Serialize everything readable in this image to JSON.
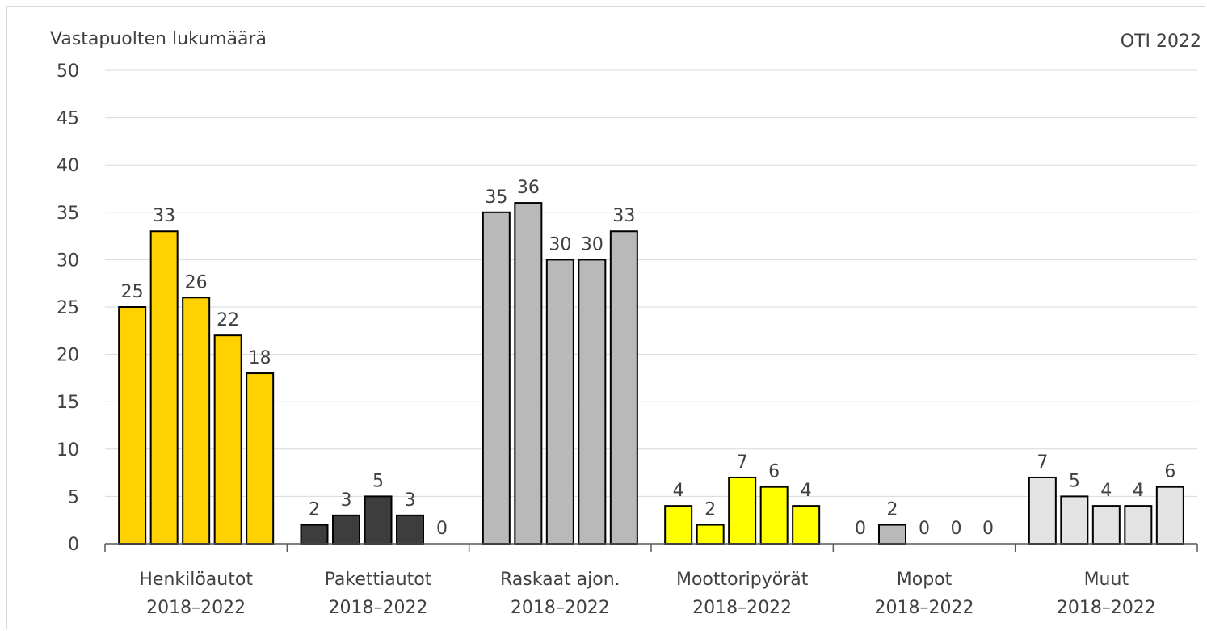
{
  "chart_data": {
    "type": "bar",
    "ylabel": "Vastapuolten lukumäärä",
    "corner_label": "OTI 2022",
    "ylim": [
      0,
      50
    ],
    "yticks": [
      0,
      5,
      10,
      15,
      20,
      25,
      30,
      35,
      40,
      45,
      50
    ],
    "grid": true,
    "categories": [
      {
        "label": "Henkilöautot",
        "sublabel": "2018–2022",
        "values": [
          25,
          33,
          26,
          22,
          18
        ],
        "colors": [
          "#ffd100",
          "#ffd100",
          "#ffd100",
          "#ffd100",
          "#ffd100"
        ]
      },
      {
        "label": "Pakettiautot",
        "sublabel": "2018–2022",
        "values": [
          2,
          3,
          5,
          3,
          0
        ],
        "colors": [
          "#3d3d3d",
          "#3d3d3d",
          "#3d3d3d",
          "#3d3d3d",
          "#3d3d3d"
        ]
      },
      {
        "label": "Raskaat ajon.",
        "sublabel": "2018–2022",
        "values": [
          35,
          36,
          30,
          30,
          33
        ],
        "colors": [
          "#b9b9b9",
          "#b9b9b9",
          "#b9b9b9",
          "#b9b9b9",
          "#b9b9b9"
        ]
      },
      {
        "label": "Moottoripyörät",
        "sublabel": "2018–2022",
        "values": [
          4,
          2,
          7,
          6,
          4
        ],
        "colors": [
          "#ffff00",
          "#ffff00",
          "#ffff00",
          "#ffff00",
          "#ffff00"
        ]
      },
      {
        "label": "Mopot",
        "sublabel": "2018–2022",
        "values": [
          0,
          2,
          0,
          0,
          0
        ],
        "colors": [
          "#b9b9b9",
          "#b9b9b9",
          "#b9b9b9",
          "#b9b9b9",
          "#b9b9b9"
        ]
      },
      {
        "label": "Muut",
        "sublabel": "2018–2022",
        "values": [
          7,
          5,
          4,
          4,
          6
        ],
        "colors": [
          "#e3e3e3",
          "#e3e3e3",
          "#e3e3e3",
          "#e3e3e3",
          "#e3e3e3"
        ]
      }
    ]
  }
}
